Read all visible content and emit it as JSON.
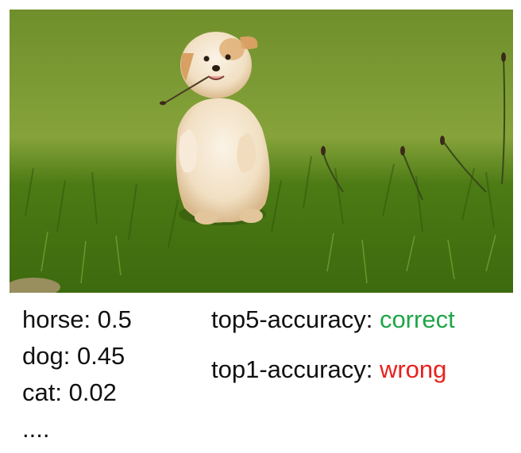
{
  "photo": {
    "subject": "puppy standing on hind legs in grass",
    "grass_color": "#5e8a1d",
    "fur_color": "#f3e2c8"
  },
  "predictions": [
    {
      "label": "horse: 0.5"
    },
    {
      "label": "dog: 0.45"
    },
    {
      "label": "cat: 0.02"
    },
    {
      "label": "...."
    }
  ],
  "metrics": {
    "top5": {
      "label": "top5-accuracy: ",
      "result": "correct",
      "result_color": "#1fa548"
    },
    "top1": {
      "label": "top1-accuracy: ",
      "result": "wrong",
      "result_color": "#e8201c"
    }
  }
}
